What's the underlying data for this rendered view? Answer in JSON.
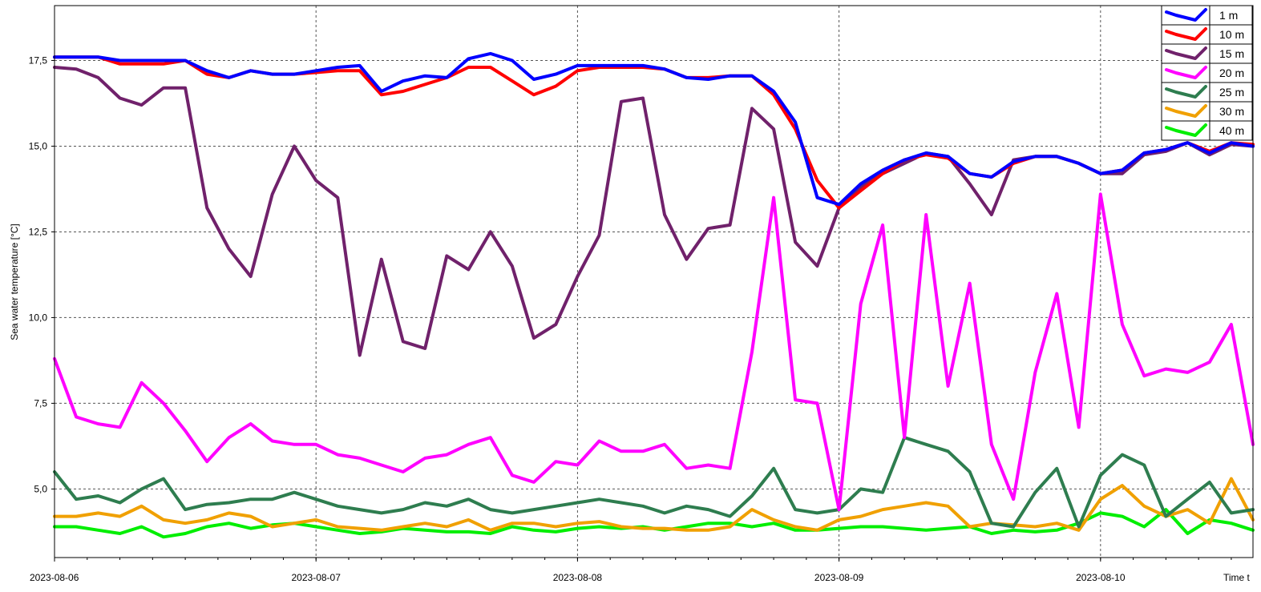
{
  "chart_data": {
    "type": "line",
    "title": "",
    "xlabel": "Time t",
    "ylabel": "Sea water temperature [°C]",
    "x_tick_labels": [
      "2023-08-06",
      "2023-08-07",
      "2023-08-08",
      "2023-08-09",
      "2023-08-10"
    ],
    "y_tick_labels": [
      "5,0",
      "7,5",
      "10,0",
      "12,5",
      "15,0",
      "17,5"
    ],
    "y_ticks": [
      5.0,
      7.5,
      10.0,
      12.5,
      15.0,
      17.5
    ],
    "xlim_days": [
      0,
      4.583
    ],
    "ylim": [
      3.0,
      19.1
    ],
    "grid": true,
    "legend_position": "top-right",
    "x_days": [
      0,
      0.083,
      0.167,
      0.25,
      0.333,
      0.417,
      0.5,
      0.583,
      0.667,
      0.75,
      0.833,
      0.917,
      1.0,
      1.083,
      1.167,
      1.25,
      1.333,
      1.417,
      1.5,
      1.583,
      1.667,
      1.75,
      1.833,
      1.917,
      2.0,
      2.083,
      2.167,
      2.25,
      2.333,
      2.417,
      2.5,
      2.583,
      2.667,
      2.75,
      2.833,
      2.917,
      3.0,
      3.083,
      3.167,
      3.25,
      3.333,
      3.417,
      3.5,
      3.583,
      3.667,
      3.75,
      3.833,
      3.917,
      4.0,
      4.083,
      4.167,
      4.25,
      4.333,
      4.417,
      4.5,
      4.583
    ],
    "series": [
      {
        "name": "1 m",
        "color": "#0000ff",
        "values": [
          17.6,
          17.6,
          17.6,
          17.5,
          17.5,
          17.5,
          17.5,
          17.2,
          17.0,
          17.2,
          17.1,
          17.1,
          17.2,
          17.3,
          17.35,
          16.6,
          16.9,
          17.05,
          17.0,
          17.55,
          17.7,
          17.5,
          16.95,
          17.1,
          17.35,
          17.35,
          17.35,
          17.35,
          17.25,
          17.0,
          16.95,
          17.05,
          17.05,
          16.6,
          15.7,
          13.5,
          13.3,
          13.9,
          14.3,
          14.6,
          14.8,
          14.7,
          14.2,
          14.1,
          14.55,
          14.7,
          14.7,
          14.5,
          14.2,
          14.3,
          14.8,
          14.9,
          15.1,
          14.8,
          15.1,
          15.0
        ]
      },
      {
        "name": "10 m",
        "color": "#ff0000",
        "values": [
          17.6,
          17.6,
          17.6,
          17.4,
          17.4,
          17.4,
          17.5,
          17.1,
          17.0,
          17.2,
          17.1,
          17.1,
          17.15,
          17.2,
          17.2,
          16.5,
          16.6,
          16.8,
          17.0,
          17.3,
          17.3,
          16.9,
          16.5,
          16.75,
          17.2,
          17.3,
          17.3,
          17.3,
          17.25,
          17.0,
          17.0,
          17.05,
          17.05,
          16.5,
          15.5,
          14.0,
          13.2,
          13.7,
          14.2,
          14.6,
          14.75,
          14.65,
          14.2,
          14.1,
          14.5,
          14.7,
          14.7,
          14.5,
          14.2,
          14.3,
          14.8,
          14.9,
          15.1,
          14.85,
          15.1,
          15.05
        ]
      },
      {
        "name": "15 m",
        "color": "#70216b",
        "values": [
          17.3,
          17.25,
          17.0,
          16.4,
          16.2,
          16.7,
          16.7,
          13.2,
          12.0,
          11.2,
          13.6,
          15.0,
          14.0,
          13.5,
          8.9,
          11.7,
          9.3,
          9.1,
          11.8,
          11.4,
          12.5,
          11.5,
          9.4,
          9.8,
          11.2,
          12.4,
          16.3,
          16.4,
          13.0,
          11.7,
          12.6,
          12.7,
          16.1,
          15.5,
          12.2,
          11.5,
          13.2,
          13.8,
          14.2,
          14.5,
          14.8,
          14.7,
          13.9,
          13.0,
          14.6,
          14.7,
          14.7,
          14.5,
          14.2,
          14.2,
          14.75,
          14.85,
          15.1,
          14.75,
          15.05,
          15.0
        ]
      },
      {
        "name": "20 m",
        "color": "#ff00ff",
        "values": [
          8.8,
          7.1,
          6.9,
          6.8,
          8.1,
          7.5,
          6.7,
          5.8,
          6.5,
          6.9,
          6.4,
          6.3,
          6.3,
          6.0,
          5.9,
          5.7,
          5.5,
          5.9,
          6.0,
          6.3,
          6.5,
          5.4,
          5.2,
          5.8,
          5.7,
          6.4,
          6.1,
          6.1,
          6.3,
          5.6,
          5.7,
          5.6,
          9.0,
          13.5,
          7.6,
          7.5,
          4.4,
          10.4,
          12.7,
          6.5,
          13.0,
          8.0,
          11.0,
          6.3,
          4.7,
          8.4,
          10.7,
          6.8,
          13.6,
          9.8,
          8.3,
          8.5,
          8.4,
          8.7,
          9.8,
          6.3
        ]
      },
      {
        "name": "25 m",
        "color": "#2e7d4f",
        "values": [
          5.5,
          4.7,
          4.8,
          4.6,
          5.0,
          5.3,
          4.4,
          4.55,
          4.6,
          4.7,
          4.7,
          4.9,
          4.7,
          4.5,
          4.4,
          4.3,
          4.4,
          4.6,
          4.5,
          4.7,
          4.4,
          4.3,
          4.4,
          4.5,
          4.6,
          4.7,
          4.6,
          4.5,
          4.3,
          4.5,
          4.4,
          4.2,
          4.8,
          5.6,
          4.4,
          4.3,
          4.4,
          5.0,
          4.9,
          6.5,
          6.3,
          6.1,
          5.5,
          4.0,
          3.9,
          4.9,
          5.6,
          3.9,
          5.4,
          6.0,
          5.7,
          4.2,
          4.7,
          5.2,
          4.3,
          4.4
        ]
      },
      {
        "name": "30 m",
        "color": "#f0a000",
        "values": [
          4.2,
          4.2,
          4.3,
          4.2,
          4.5,
          4.1,
          4.0,
          4.1,
          4.3,
          4.2,
          3.9,
          4.0,
          4.1,
          3.9,
          3.85,
          3.8,
          3.9,
          4.0,
          3.9,
          4.1,
          3.8,
          4.0,
          4.0,
          3.9,
          4.0,
          4.05,
          3.9,
          3.85,
          3.85,
          3.8,
          3.8,
          3.9,
          4.4,
          4.1,
          3.9,
          3.8,
          4.1,
          4.2,
          4.4,
          4.5,
          4.6,
          4.5,
          3.9,
          4.0,
          3.95,
          3.9,
          4.0,
          3.8,
          4.7,
          5.1,
          4.5,
          4.2,
          4.4,
          4.0,
          5.3,
          4.1
        ]
      },
      {
        "name": "40 m",
        "color": "#00ee00",
        "values": [
          3.9,
          3.9,
          3.8,
          3.7,
          3.9,
          3.6,
          3.7,
          3.9,
          4.0,
          3.85,
          3.95,
          4.0,
          3.9,
          3.8,
          3.7,
          3.75,
          3.85,
          3.8,
          3.75,
          3.75,
          3.7,
          3.9,
          3.8,
          3.75,
          3.85,
          3.9,
          3.85,
          3.9,
          3.8,
          3.9,
          4.0,
          4.0,
          3.9,
          4.0,
          3.8,
          3.8,
          3.85,
          3.9,
          3.9,
          3.85,
          3.8,
          3.85,
          3.9,
          3.7,
          3.8,
          3.75,
          3.8,
          4.0,
          4.3,
          4.2,
          3.9,
          4.4,
          3.7,
          4.1,
          4.0,
          3.8
        ]
      }
    ]
  }
}
